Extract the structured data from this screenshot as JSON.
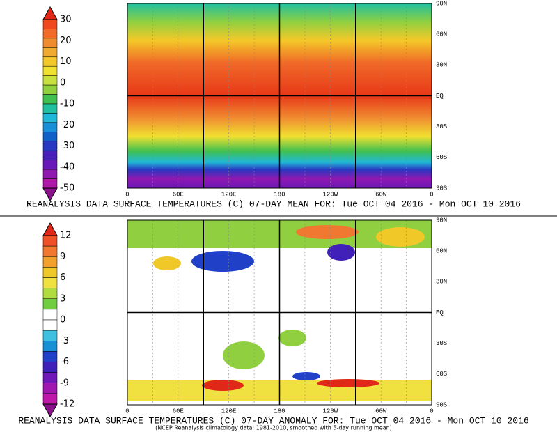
{
  "panels": [
    {
      "colorbar": {
        "labels": [
          30,
          20,
          10,
          0,
          -10,
          -20,
          -30,
          -40,
          -50
        ],
        "colors": [
          "#e02818",
          "#f04820",
          "#f06a28",
          "#f08c30",
          "#f0aa30",
          "#f4c828",
          "#f0e030",
          "#c8e040",
          "#90d040",
          "#40c050",
          "#20c0a0",
          "#20b8d8",
          "#1890d8",
          "#1060c8",
          "#2838c0",
          "#4820b8",
          "#6818b8",
          "#9018b0",
          "#b018a8",
          "#8a108a"
        ]
      },
      "lon_labels": [
        "0",
        "60E",
        "120E",
        "180",
        "120W",
        "60W",
        "0"
      ],
      "lat_labels": [
        "90N",
        "60N",
        "30N",
        "EQ",
        "30S",
        "60S",
        "90S"
      ],
      "caption": "REANALYSIS DATA SURFACE TEMPERATURES (C) 07-DAY MEAN FOR: Tue OCT 04 2016 - Mon OCT 10 2016"
    },
    {
      "colorbar": {
        "labels": [
          12,
          9,
          6,
          3,
          0,
          -3,
          -6,
          -9,
          -12
        ],
        "colors": [
          "#e02818",
          "#f05028",
          "#f07830",
          "#f0a030",
          "#f0c828",
          "#f0e040",
          "#b0dc40",
          "#70cc40",
          "#ffffff",
          "#ffffff",
          "#40c0e0",
          "#1890d8",
          "#2040c8",
          "#4020b8",
          "#7018b8",
          "#a018b0",
          "#c018a8",
          "#8a108a"
        ]
      },
      "lon_labels": [
        "0",
        "60E",
        "120E",
        "180",
        "120W",
        "60W",
        "0"
      ],
      "lat_labels": [
        "90N",
        "60N",
        "30N",
        "EQ",
        "30S",
        "60S",
        "90S"
      ],
      "caption": "REANALYSIS DATA SURFACE TEMPERATURES (C) 07-DAY ANOMALY FOR: Tue OCT 04 2016 - Mon OCT 10 2016",
      "note": "(NCEP Reanalysis climatology data: 1981-2010, smoothed with 5-day running mean)"
    }
  ]
}
